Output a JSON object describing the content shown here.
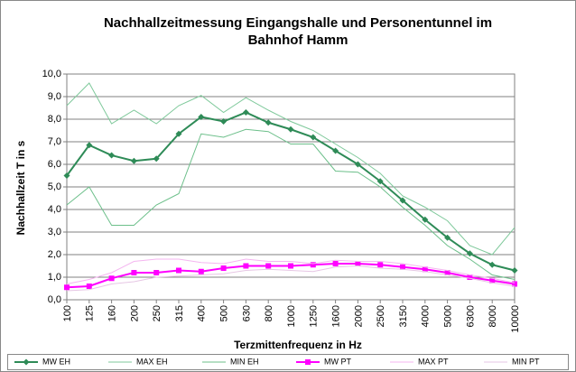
{
  "chart_data": {
    "type": "line",
    "title": [
      "Nachhallzeitmessung Eingangshalle und Personentunnel im",
      "Bahnhof Hamm"
    ],
    "y_label": "Nachhallzeit T in s",
    "x_label": "Terzmittenfrequenz in Hz",
    "categories": [
      "100",
      "125",
      "160",
      "200",
      "250",
      "315",
      "400",
      "500",
      "630",
      "800",
      "1000",
      "1250",
      "1600",
      "2000",
      "2500",
      "3150",
      "4000",
      "5000",
      "6300",
      "8000",
      "10000"
    ],
    "ylim": [
      0,
      10
    ],
    "yticks": [
      {
        "value": 0,
        "label": "0,0"
      },
      {
        "value": 1,
        "label": "1,0"
      },
      {
        "value": 2,
        "label": "2,0"
      },
      {
        "value": 3,
        "label": "3,0"
      },
      {
        "value": 4,
        "label": "4,0"
      },
      {
        "value": 5,
        "label": "5,0"
      },
      {
        "value": 6,
        "label": "6,0"
      },
      {
        "value": 7,
        "label": "7,0"
      },
      {
        "value": 8,
        "label": "8,0"
      },
      {
        "value": 9,
        "label": "9,0"
      },
      {
        "value": 10,
        "label": "10,0"
      }
    ],
    "grid": true,
    "series": [
      {
        "name": "MW EH",
        "color": "#2e8b57",
        "marker": "diamond",
        "values": [
          5.5,
          6.85,
          6.4,
          6.15,
          6.25,
          7.35,
          8.1,
          7.9,
          8.3,
          7.85,
          7.55,
          7.2,
          6.6,
          6.0,
          5.25,
          4.4,
          3.55,
          2.75,
          2.05,
          1.55,
          1.3
        ]
      },
      {
        "name": "MAX EH",
        "color": "#7fc99b",
        "values": [
          8.6,
          9.6,
          7.8,
          8.4,
          7.8,
          8.6,
          9.05,
          8.3,
          8.95,
          8.4,
          7.9,
          7.5,
          6.9,
          6.3,
          5.6,
          4.6,
          4.1,
          3.5,
          2.4,
          2.0,
          3.2
        ]
      },
      {
        "name": "MIN EH",
        "color": "#6cbf8a",
        "values": [
          4.2,
          5.0,
          3.3,
          3.3,
          4.2,
          4.7,
          7.35,
          7.2,
          7.55,
          7.45,
          6.9,
          6.9,
          5.7,
          5.65,
          5.0,
          4.1,
          3.3,
          2.4,
          1.8,
          1.1,
          0.9
        ]
      },
      {
        "name": "MW PT",
        "color": "#ff00ff",
        "marker": "square",
        "values": [
          0.55,
          0.6,
          0.95,
          1.2,
          1.2,
          1.3,
          1.25,
          1.4,
          1.5,
          1.5,
          1.5,
          1.55,
          1.6,
          1.6,
          1.55,
          1.45,
          1.35,
          1.2,
          1.0,
          0.85,
          0.7
        ]
      },
      {
        "name": "MAX PT",
        "color": "#f4b6f0",
        "values": [
          0.7,
          0.9,
          1.2,
          1.7,
          1.8,
          1.8,
          1.65,
          1.6,
          1.8,
          1.7,
          1.7,
          1.6,
          1.75,
          1.7,
          1.7,
          1.6,
          1.45,
          1.3,
          1.1,
          0.95,
          0.75
        ]
      },
      {
        "name": "MIN PT",
        "color": "#e6c6e4",
        "values": [
          0.4,
          0.45,
          0.7,
          0.8,
          1.0,
          1.05,
          1.1,
          1.15,
          1.3,
          1.35,
          1.3,
          1.25,
          1.45,
          1.5,
          1.4,
          1.35,
          1.25,
          1.1,
          0.95,
          0.75,
          0.6
        ]
      }
    ]
  }
}
